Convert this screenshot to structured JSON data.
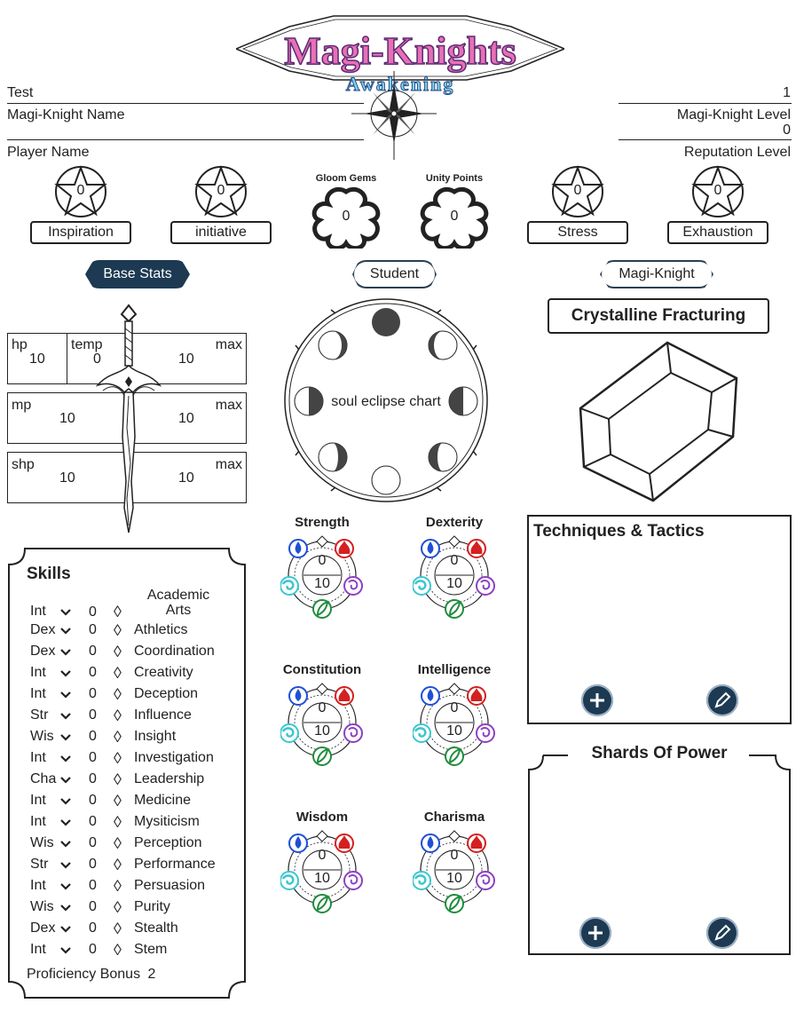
{
  "logo": {
    "title": "Magi-Knights",
    "subtitle": "Awakening"
  },
  "header": {
    "name_value": "Test",
    "name_label": "Magi-Knight Name",
    "player_label": "Player Name",
    "level_value": "1",
    "level_label": "Magi-Knight Level",
    "reputation_value": "0",
    "reputation_label": "Reputation Level"
  },
  "trackers": {
    "inspiration": {
      "value": "0",
      "label": "Inspiration"
    },
    "initiative": {
      "value": "0",
      "label": "initiative"
    },
    "stress": {
      "value": "0",
      "label": "Stress"
    },
    "exhaustion": {
      "value": "0",
      "label": "Exhaustion"
    },
    "gloom": {
      "value": "0",
      "label": "Gloom Gems"
    },
    "unity": {
      "value": "0",
      "label": "Unity Points"
    }
  },
  "tabs": {
    "base": "Base Stats",
    "student": "Student",
    "magi": "Magi-Knight"
  },
  "stats": {
    "hp": {
      "label": "hp",
      "value": "10",
      "temp_label": "temp",
      "temp": "0",
      "max_label": "max",
      "max": "10"
    },
    "mp": {
      "label": "mp",
      "value": "10",
      "max_label": "max",
      "max": "10"
    },
    "shp": {
      "label": "shp",
      "value": "10",
      "max_label": "max",
      "max": "10"
    }
  },
  "soul_chart": "soul eclipse chart",
  "crystal_title": "Crystalline Fracturing",
  "attributes": [
    {
      "name": "Strength",
      "top": "0",
      "bottom": "10"
    },
    {
      "name": "Dexterity",
      "top": "0",
      "bottom": "10"
    },
    {
      "name": "Constitution",
      "top": "0",
      "bottom": "10"
    },
    {
      "name": "Intelligence",
      "top": "0",
      "bottom": "10"
    },
    {
      "name": "Wisdom",
      "top": "0",
      "bottom": "10"
    },
    {
      "name": "Charisma",
      "top": "0",
      "bottom": "10"
    }
  ],
  "skills": {
    "title": "Skills",
    "rows": [
      {
        "abbr": "Int",
        "value": "0",
        "name": "Academic Arts"
      },
      {
        "abbr": "Dex",
        "value": "0",
        "name": "Athletics"
      },
      {
        "abbr": "Dex",
        "value": "0",
        "name": "Coordination"
      },
      {
        "abbr": "Int",
        "value": "0",
        "name": "Creativity"
      },
      {
        "abbr": "Int",
        "value": "0",
        "name": "Deception"
      },
      {
        "abbr": "Str",
        "value": "0",
        "name": "Influence"
      },
      {
        "abbr": "Wis",
        "value": "0",
        "name": "Insight"
      },
      {
        "abbr": "Int",
        "value": "0",
        "name": "Investigation"
      },
      {
        "abbr": "Cha",
        "value": "0",
        "name": "Leadership"
      },
      {
        "abbr": "Int",
        "value": "0",
        "name": "Medicine"
      },
      {
        "abbr": "Int",
        "value": "0",
        "name": "Mysiticism"
      },
      {
        "abbr": "Wis",
        "value": "0",
        "name": "Perception"
      },
      {
        "abbr": "Str",
        "value": "0",
        "name": "Performance"
      },
      {
        "abbr": "Int",
        "value": "0",
        "name": "Persuasion"
      },
      {
        "abbr": "Wis",
        "value": "0",
        "name": "Purity"
      },
      {
        "abbr": "Dex",
        "value": "0",
        "name": "Stealth"
      },
      {
        "abbr": "Int",
        "value": "0",
        "name": "Stem"
      }
    ],
    "proficiency_label": "Proficiency Bonus",
    "proficiency_value": "2"
  },
  "techniques": {
    "title": "Techniques & Tactics"
  },
  "shards": {
    "title": "Shards Of Power"
  },
  "icons": {
    "add": "plus-icon",
    "edit": "pencil-icon",
    "star": "star-icon",
    "sword": "sword-icon",
    "dropdown": "chevron-down-icon",
    "diamond": "diamond-icon"
  },
  "colors": {
    "accent": "#1d3a52",
    "water": "#1f4fd6",
    "fire": "#d42020",
    "wind": "#3cc6d0",
    "arcane": "#8e3fc4",
    "earth": "#1f8c3c"
  }
}
